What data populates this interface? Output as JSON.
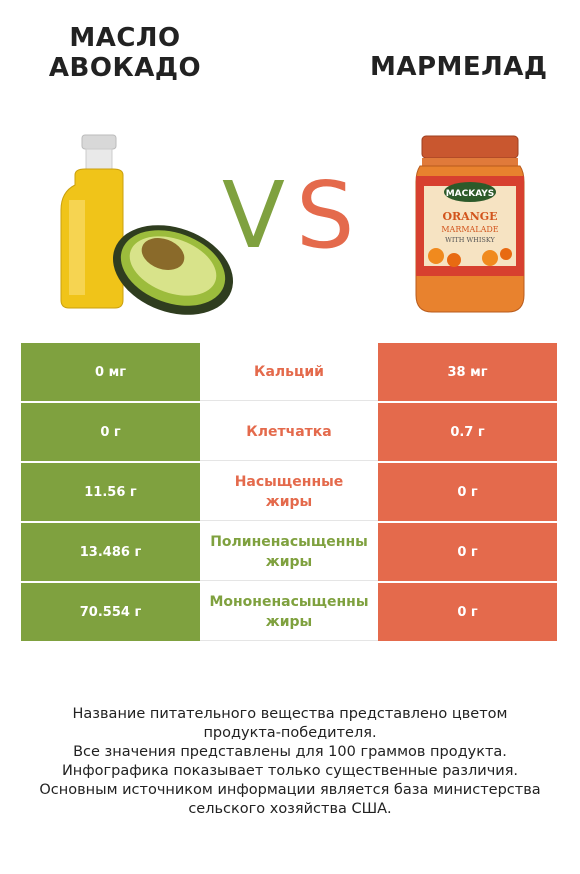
{
  "left_product": {
    "name": "МАСЛО\nАВОКАДО",
    "color": "#7fa13f"
  },
  "right_product": {
    "name": "МАРМЕЛАД",
    "color": "#e46a4c"
  },
  "vs": {
    "v": "V",
    "s": "S"
  },
  "jar_label": {
    "brand": "MACKAYS",
    "line1": "ORANGE",
    "line2": "MARMALADE",
    "line3": "WITH WHISKY"
  },
  "nutrients": [
    {
      "name": "Кальций",
      "left": "0 мг",
      "right": "38 мг",
      "winner_color": "#e46a4c"
    },
    {
      "name": "Клетчатка",
      "left": "0 г",
      "right": "0.7 г",
      "winner_color": "#e46a4c"
    },
    {
      "name": "Насыщенные\nжиры",
      "left": "11.56 г",
      "right": "0 г",
      "winner_color": "#e46a4c"
    },
    {
      "name": "Полиненасыщенны\nжиры",
      "left": "13.486 г",
      "right": "0 г",
      "winner_color": "#7fa13f"
    },
    {
      "name": "Мононенасыщенны\nжиры",
      "left": "70.554 г",
      "right": "0 г",
      "winner_color": "#7fa13f"
    }
  ],
  "footer": "Название питательного вещества представлено цветом\nпродукта-победителя.\nВсе значения представлены для 100 граммов продукта.\nИнфографика показывает только существенные различия.\nОсновным источником информации является база министерства\nсельского хозяйства США."
}
